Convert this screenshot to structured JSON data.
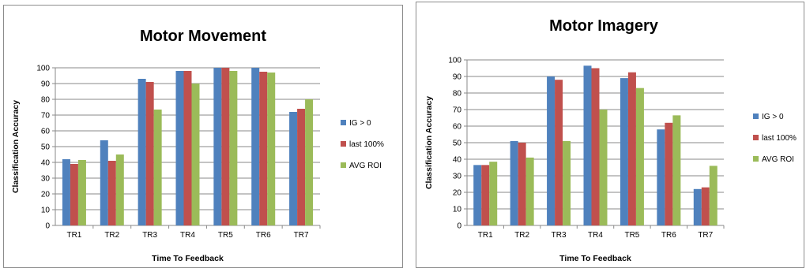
{
  "chart_data": [
    {
      "type": "bar",
      "title": "Motor Movement",
      "xlabel": "Time To Feedback",
      "ylabel": "Classification  Accuracy",
      "ylim": [
        0,
        100
      ],
      "yticks": [
        0,
        10,
        20,
        30,
        40,
        50,
        60,
        70,
        80,
        90,
        100
      ],
      "grid": true,
      "legend": "right",
      "categories": [
        "TR1",
        "TR2",
        "TR3",
        "TR4",
        "TR5",
        "TR6",
        "TR7"
      ],
      "series": [
        {
          "name": "IG > 0",
          "color": "#4f81bd",
          "values": [
            42,
            54,
            93,
            98,
            100,
            100,
            72
          ]
        },
        {
          "name": "last 100%",
          "color": "#c0504d",
          "values": [
            39,
            41,
            91,
            98,
            100,
            97.5,
            74
          ]
        },
        {
          "name": "AVG ROI",
          "color": "#9bbb59",
          "values": [
            41.5,
            45,
            73.5,
            90,
            98,
            97,
            80
          ]
        }
      ]
    },
    {
      "type": "bar",
      "title": "Motor Imagery",
      "xlabel": "Time To Feedback",
      "ylabel": "Classification  Accuracy",
      "ylim": [
        0,
        100
      ],
      "yticks": [
        0,
        10,
        20,
        30,
        40,
        50,
        60,
        70,
        80,
        90,
        100
      ],
      "grid": true,
      "legend": "right",
      "categories": [
        "TR1",
        "TR2",
        "TR3",
        "TR4",
        "TR5",
        "TR6",
        "TR7"
      ],
      "series": [
        {
          "name": "IG > 0",
          "color": "#4f81bd",
          "values": [
            36.5,
            51,
            90,
            96.5,
            89,
            58,
            22
          ]
        },
        {
          "name": "last 100%",
          "color": "#c0504d",
          "values": [
            36.5,
            50,
            88,
            95,
            92.5,
            62,
            23
          ]
        },
        {
          "name": "AVG ROI",
          "color": "#9bbb59",
          "values": [
            38.5,
            41,
            51,
            70,
            83,
            66.5,
            36
          ]
        }
      ]
    }
  ]
}
